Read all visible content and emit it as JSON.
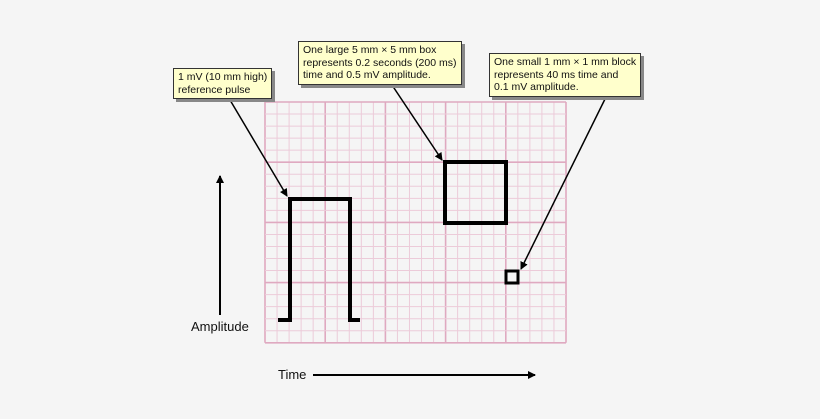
{
  "callouts": {
    "reference": "1 mV (10 mm high)\nreference pulse",
    "large_box": "One large 5 mm × 5 mm box\nrepresents 0.2 seconds (200 ms)\ntime and 0.5 mV amplitude.",
    "small_box": "One small 1 mm × 1 mm block\nrepresents 40 ms time and\n0.1 mV amplitude."
  },
  "axes": {
    "y_label": "Amplitude",
    "x_label": "Time"
  },
  "colors": {
    "grid_minor": "#eccbd9",
    "grid_major": "#dfa9c0",
    "callout_bg": "#ffffcc",
    "ink": "#000000"
  }
}
